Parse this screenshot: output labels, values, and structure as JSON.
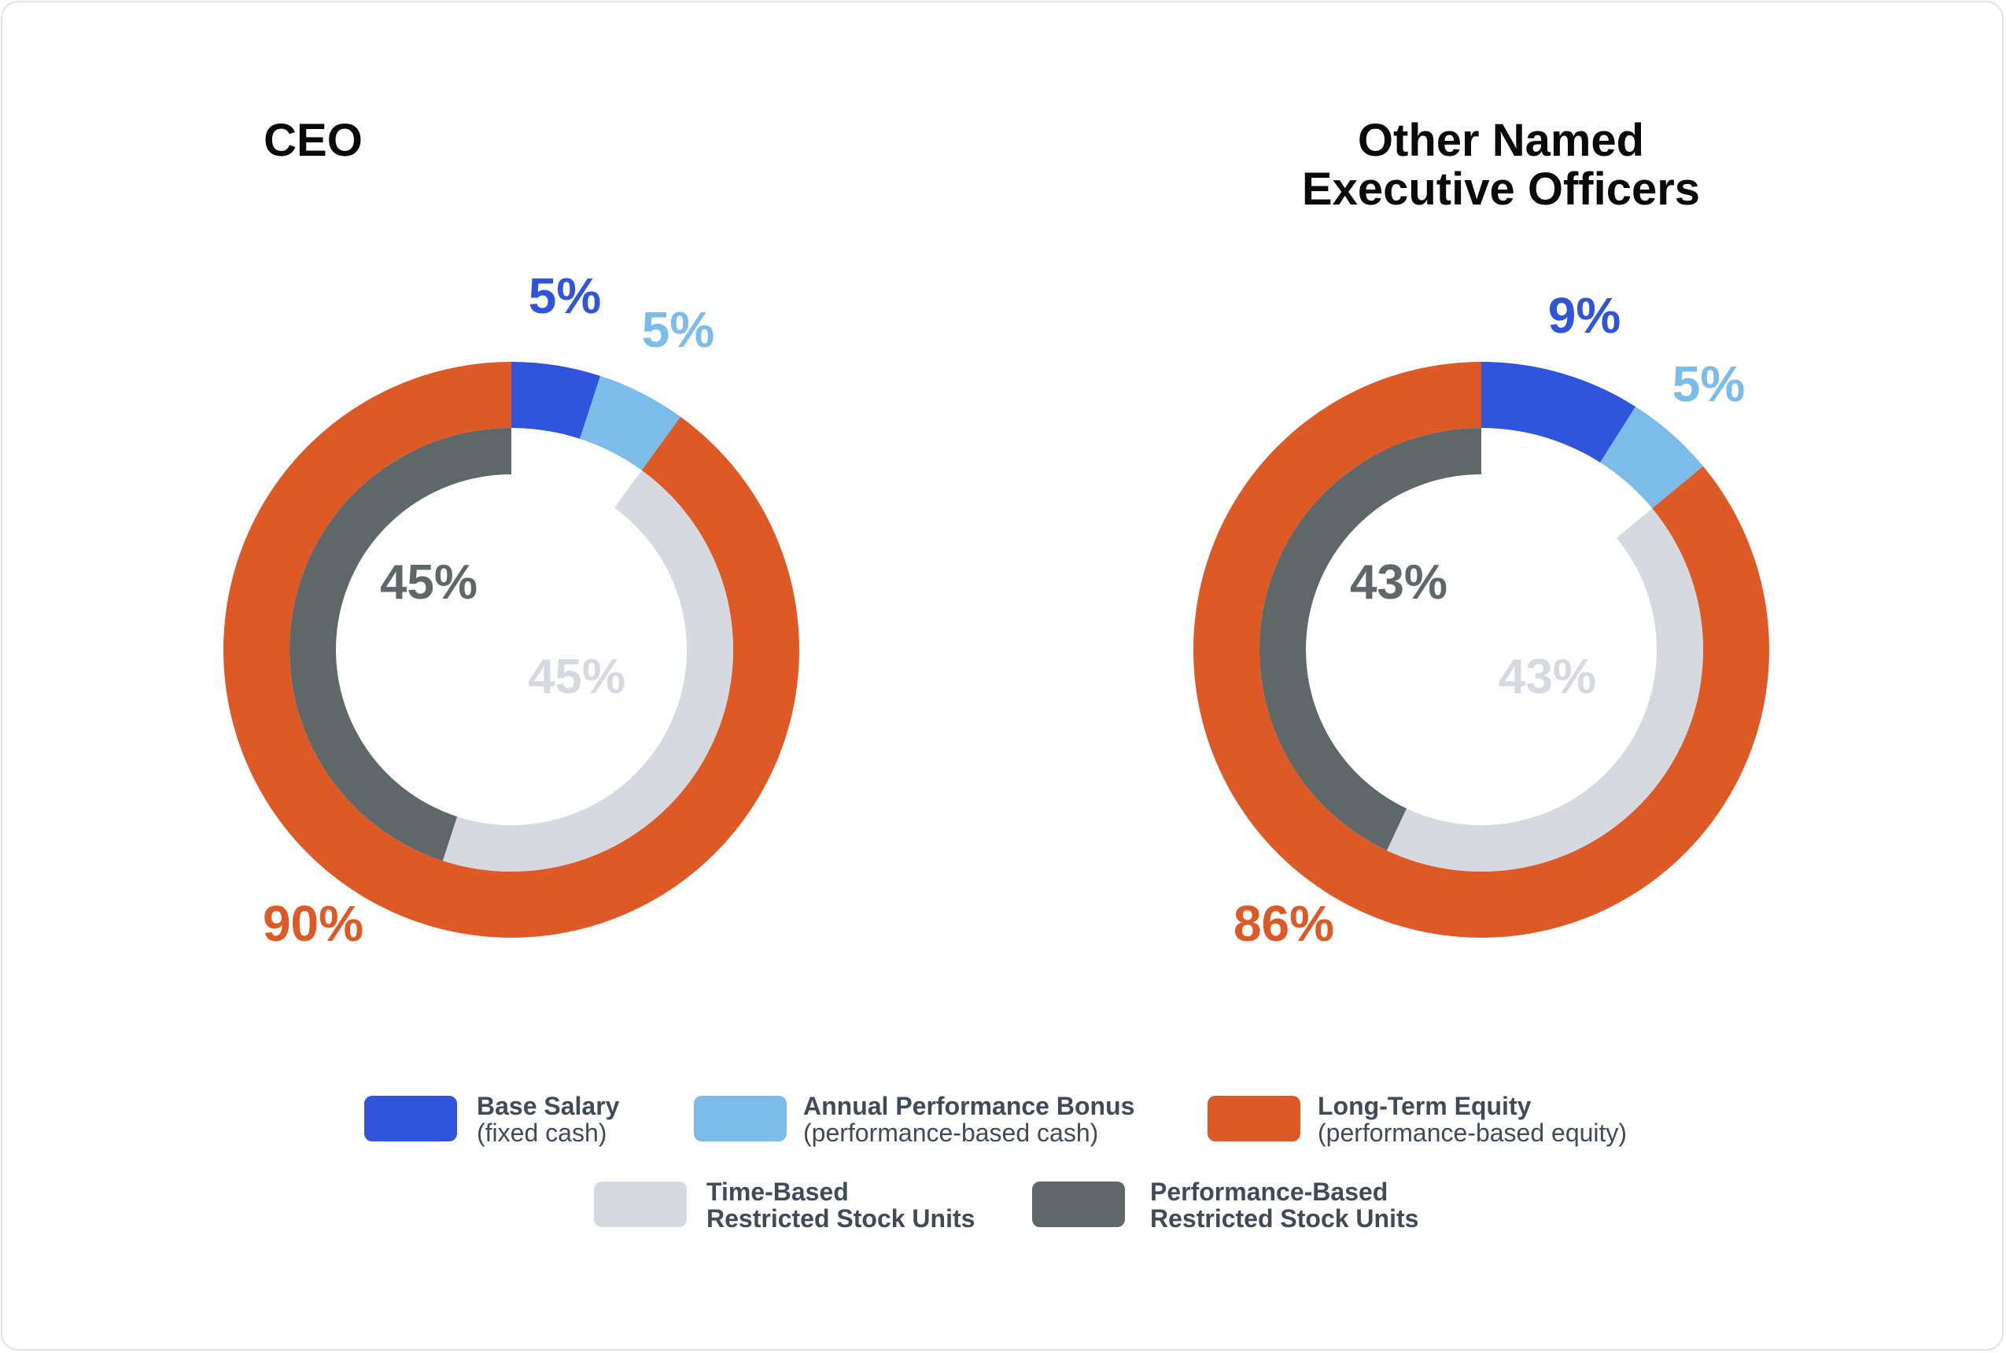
{
  "chart_data": [
    {
      "type": "pie",
      "title": "CEO",
      "outer_ring": {
        "slices": [
          {
            "name": "Base Salary",
            "value": 5,
            "label": "5%",
            "color": "#3055db"
          },
          {
            "name": "Annual Performance Bonus",
            "value": 5,
            "label": "5%",
            "color": "#7bbce9"
          },
          {
            "name": "Long-Term Equity",
            "value": 90,
            "label": "90%",
            "color": "#dd5a26"
          }
        ]
      },
      "inner_ring": {
        "slices": [
          {
            "name": "Time-Based Restricted Stock Units",
            "value": 45,
            "label": "45%",
            "color": "#d6dae0"
          },
          {
            "name": "Performance-Based Restricted Stock Units",
            "value": 45,
            "label": "45%",
            "color": "#606769"
          }
        ]
      }
    },
    {
      "type": "pie",
      "title_lines": [
        "Other Named",
        "Executive Officers"
      ],
      "outer_ring": {
        "slices": [
          {
            "name": "Base Salary",
            "value": 9,
            "label": "9%",
            "color": "#3055db"
          },
          {
            "name": "Annual Performance Bonus",
            "value": 5,
            "label": "5%",
            "color": "#7bbce9"
          },
          {
            "name": "Long-Term Equity",
            "value": 86,
            "label": "86%",
            "color": "#dd5a26"
          }
        ]
      },
      "inner_ring": {
        "slices": [
          {
            "name": "Time-Based Restricted Stock Units",
            "value": 43,
            "label": "43%",
            "color": "#d6dae0"
          },
          {
            "name": "Performance-Based Restricted Stock Units",
            "value": 43,
            "label": "43%",
            "color": "#606769"
          }
        ]
      }
    }
  ],
  "legend": {
    "placement": "bottom",
    "items": [
      {
        "line1": "Base Salary",
        "line2": "(fixed cash)",
        "color": "#3055db"
      },
      {
        "line1": "Annual Performance Bonus",
        "line2": "(performance-based cash)",
        "color": "#7bbce9"
      },
      {
        "line1": "Long-Term Equity",
        "line2": "(performance-based equity)",
        "color": "#dd5a26"
      },
      {
        "line1": "Time-Based",
        "line2": "Restricted Stock Units",
        "color": "#d6dae0"
      },
      {
        "line1": "Performance-Based",
        "line2": "Restricted Stock Units",
        "color": "#606769"
      }
    ]
  }
}
